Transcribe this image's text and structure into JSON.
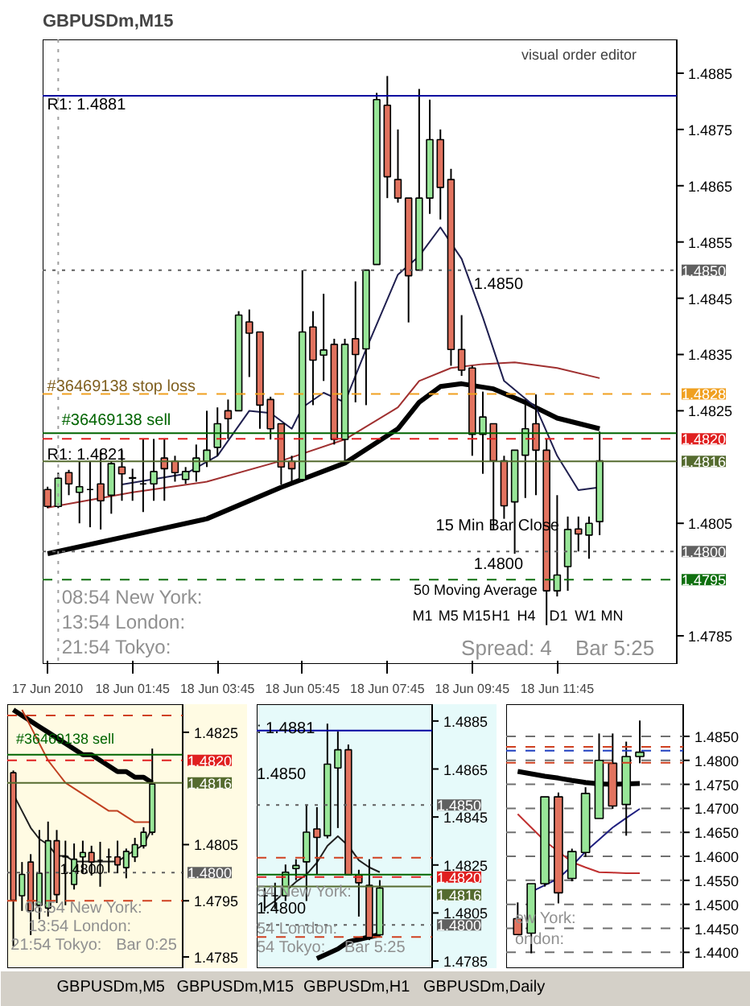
{
  "chart_data": [
    {
      "type": "candlestick",
      "title": "GBPUSDm,M15",
      "x": [
        "2010-06-17T23:45",
        "2010-06-18T00:00",
        "2010-06-18T00:15",
        "2010-06-18T00:30",
        "2010-06-18T00:45",
        "2010-06-18T01:00",
        "2010-06-18T01:15",
        "2010-06-18T01:30",
        "2010-06-18T01:45",
        "2010-06-18T02:00",
        "2010-06-18T02:15",
        "2010-06-18T02:30",
        "2010-06-18T02:45",
        "2010-06-18T03:00",
        "2010-06-18T03:15",
        "2010-06-18T03:30",
        "2010-06-18T03:45",
        "2010-06-18T04:00",
        "2010-06-18T04:15",
        "2010-06-18T04:30",
        "2010-06-18T04:45",
        "2010-06-18T05:00",
        "2010-06-18T05:15",
        "2010-06-18T05:30",
        "2010-06-18T05:45",
        "2010-06-18T06:00",
        "2010-06-18T06:15",
        "2010-06-18T06:30",
        "2010-06-18T06:45",
        "2010-06-18T07:00",
        "2010-06-18T07:15",
        "2010-06-18T07:30",
        "2010-06-18T07:45",
        "2010-06-18T08:00",
        "2010-06-18T08:15",
        "2010-06-18T08:30",
        "2010-06-18T08:45",
        "2010-06-18T09:00",
        "2010-06-18T09:15",
        "2010-06-18T09:30",
        "2010-06-18T09:45",
        "2010-06-18T10:00",
        "2010-06-18T10:15",
        "2010-06-18T10:30",
        "2010-06-18T10:45",
        "2010-06-18T11:00",
        "2010-06-18T11:15",
        "2010-06-18T11:30",
        "2010-06-18T11:45",
        "2010-06-18T12:00",
        "2010-06-18T12:15",
        "2010-06-18T12:30",
        "2010-06-18T12:45"
      ],
      "ohlc": [
        [
          1.4811,
          1.48115,
          1.48077,
          1.4808
        ],
        [
          1.4808,
          1.4814,
          1.48077,
          1.4813
        ],
        [
          1.4814,
          1.48145,
          1.481,
          1.4812
        ],
        [
          1.48105,
          1.4816,
          1.4805,
          1.48115
        ],
        [
          1.4811,
          1.4816,
          1.48043,
          1.4811
        ],
        [
          1.4812,
          1.4818,
          1.48039,
          1.4809
        ],
        [
          1.481,
          1.4816,
          1.48067,
          1.48156
        ],
        [
          1.4815,
          1.4818,
          1.4809,
          1.48138
        ],
        [
          1.48131,
          1.48147,
          1.4809,
          1.4813
        ],
        [
          1.4812,
          1.482,
          1.4807,
          1.4812
        ],
        [
          1.4812,
          1.482,
          1.4809,
          1.48142
        ],
        [
          1.48166,
          1.482,
          1.4809,
          1.48147
        ],
        [
          1.4816,
          1.4817,
          1.48124,
          1.4814
        ],
        [
          1.48128,
          1.4815,
          1.4812,
          1.48142
        ],
        [
          1.48142,
          1.4819,
          1.48124,
          1.48166
        ],
        [
          1.4816,
          1.4825,
          1.4815,
          1.4818
        ],
        [
          1.48185,
          1.48256,
          1.4817,
          1.48227
        ],
        [
          1.4825,
          1.4827,
          1.482,
          1.48236
        ],
        [
          1.4825,
          1.48427,
          1.4825,
          1.4842
        ],
        [
          1.48408,
          1.4843,
          1.4831,
          1.48388
        ],
        [
          1.4839,
          1.4839,
          1.48218,
          1.4826
        ],
        [
          1.4827,
          1.48275,
          1.48199,
          1.48218
        ],
        [
          1.48227,
          1.48227,
          1.48119,
          1.4815
        ],
        [
          1.4816,
          1.4817,
          1.48124,
          1.48147
        ],
        [
          1.48128,
          1.485,
          1.48124,
          1.4839
        ],
        [
          1.48399,
          1.48427,
          1.4826,
          1.4834
        ],
        [
          1.48349,
          1.48458,
          1.48303,
          1.48358
        ],
        [
          1.48368,
          1.48378,
          1.4819,
          1.48199
        ],
        [
          1.48199,
          1.48378,
          1.48157,
          1.48368
        ],
        [
          1.48378,
          1.4848,
          1.48265,
          1.4835
        ],
        [
          1.4836,
          1.485,
          1.4826,
          1.485
        ],
        [
          1.4851,
          1.48815,
          1.4851,
          1.48803
        ],
        [
          1.48793,
          1.48845,
          1.48628,
          1.48666
        ],
        [
          1.48661,
          1.4875,
          1.4862,
          1.48628
        ],
        [
          1.48628,
          1.48628,
          1.48407,
          1.4849
        ],
        [
          1.485,
          1.48822,
          1.485,
          1.48628
        ],
        [
          1.48628,
          1.48803,
          1.486,
          1.48732
        ],
        [
          1.48732,
          1.4875,
          1.4859,
          1.48647
        ],
        [
          1.48661,
          1.4868,
          1.4833,
          1.48359
        ],
        [
          1.48359,
          1.4842,
          1.48312,
          1.48322
        ],
        [
          1.48326,
          1.4833,
          1.4817,
          1.48208
        ],
        [
          1.48208,
          1.48284,
          1.48138,
          1.48239
        ],
        [
          1.48227,
          1.48227,
          1.48039,
          1.48161
        ],
        [
          1.48161,
          1.4817,
          1.48058,
          1.48081
        ],
        [
          1.48088,
          1.4818,
          1.47996,
          1.4818
        ],
        [
          1.48171,
          1.4827,
          1.48095,
          1.48218
        ],
        [
          1.48227,
          1.48279,
          1.481,
          1.4818
        ],
        [
          1.4818,
          1.48199,
          1.47869,
          1.4793
        ],
        [
          1.4793,
          1.481,
          1.4792,
          1.47958
        ],
        [
          1.47973,
          1.48062,
          1.4793,
          1.48039
        ],
        [
          1.4804,
          1.48062,
          1.48,
          1.48031
        ],
        [
          1.48029,
          1.48062,
          1.47987,
          1.4805
        ],
        [
          1.48053,
          1.48213,
          1.48029,
          1.48161
        ]
      ],
      "series": [
        {
          "type": "line",
          "color": "#000000",
          "x": [
            "2010-06-17T23:45",
            "2010-06-18T01:45",
            "2010-06-18T03:30",
            "2010-06-18T05:15",
            "2010-06-18T06:45",
            "2010-06-18T08:00",
            "2010-06-18T08:30",
            "2010-06-18T09:00",
            "2010-06-18T09:30",
            "2010-06-18T10:15",
            "2010-06-18T11:00",
            "2010-06-18T11:45",
            "2010-06-18T12:45"
          ],
          "values": [
            1.47996,
            1.48029,
            1.48058,
            1.48114,
            1.48157,
            1.48218,
            1.48265,
            1.48293,
            1.48298,
            1.48289,
            1.48265,
            1.48237,
            1.48218
          ]
        },
        {
          "type": "line",
          "color": "#a03030",
          "x": [
            "2010-06-17T23:45",
            "2010-06-18T01:45",
            "2010-06-18T03:30",
            "2010-06-18T05:15",
            "2010-06-18T06:45",
            "2010-06-18T08:00",
            "2010-06-18T08:30",
            "2010-06-18T09:15",
            "2010-06-18T10:00",
            "2010-06-18T10:45",
            "2010-06-18T11:45",
            "2010-06-18T12:45"
          ],
          "values": [
            1.48078,
            1.48105,
            1.48124,
            1.48161,
            1.48199,
            1.48256,
            1.48303,
            1.48326,
            1.48333,
            1.48336,
            1.48326,
            1.48308
          ]
        },
        {
          "type": "line",
          "color": "#202050",
          "x": [
            "2010-06-18T01:30",
            "2010-06-18T03:00",
            "2010-06-18T03:45",
            "2010-06-18T04:30",
            "2010-06-18T05:00",
            "2010-06-18T05:30",
            "2010-06-18T05:45",
            "2010-06-18T06:15",
            "2010-06-18T06:45",
            "2010-06-18T07:15",
            "2010-06-18T08:00",
            "2010-06-18T08:30",
            "2010-06-18T09:00",
            "2010-06-18T09:30",
            "2010-06-18T10:00",
            "2010-06-18T10:30",
            "2010-06-18T11:15",
            "2010-06-18T11:45",
            "2010-06-18T12:15",
            "2010-06-18T12:45"
          ],
          "values": [
            1.48119,
            1.48138,
            1.4817,
            1.4825,
            1.48246,
            1.48218,
            1.48256,
            1.48282,
            1.48265,
            1.48359,
            1.48492,
            1.48525,
            1.48576,
            1.4852,
            1.48416,
            1.48303,
            1.48256,
            1.4817,
            1.48109,
            1.48114
          ]
        }
      ],
      "xlim": [
        "2010-06-17T23:38",
        "2010-06-18T14:34"
      ],
      "xticks": [
        {
          "value": "2010-06-17T23:45",
          "label": "17 Jun 2010"
        },
        {
          "value": "2010-06-18T01:45",
          "label": "18 Jun 01:45"
        },
        {
          "value": "2010-06-18T03:45",
          "label": "18 Jun 03:45"
        },
        {
          "value": "2010-06-18T05:45",
          "label": "18 Jun 05:45"
        },
        {
          "value": "2010-06-18T07:45",
          "label": "18 Jun 07:45"
        },
        {
          "value": "2010-06-18T09:45",
          "label": "18 Jun 09:45"
        },
        {
          "value": "2010-06-18T11:45",
          "label": "18 Jun 11:45"
        }
      ],
      "ylim": [
        1.478,
        1.4891
      ],
      "yticks": [
        1.4885,
        1.4875,
        1.4865,
        1.4855,
        1.4845,
        1.4835,
        1.4825,
        1.4805,
        1.4785
      ],
      "ref_lines": [
        {
          "axis": "x",
          "value": "2010-06-18T00:00",
          "color": "#a0a0a0",
          "line_style": "dotted"
        },
        {
          "axis": "y",
          "value": 1.4881,
          "color": "#0000a0",
          "line_style": "solid"
        },
        {
          "axis": "y",
          "value": 1.485,
          "label": "1.4850",
          "color": "#606060",
          "line_style": "dotted"
        },
        {
          "axis": "y",
          "value": 1.4828,
          "label": "1.4828",
          "color": "#f0a020",
          "line_style": "dashed"
        },
        {
          "axis": "y",
          "value": 1.4821,
          "color": "#006400",
          "line_style": "solid"
        },
        {
          "axis": "y",
          "value": 1.482,
          "label": "1.4820",
          "color": "#e02020",
          "line_style": "dashed"
        },
        {
          "axis": "y",
          "value": 1.4816,
          "label": "1.4816",
          "color": "#556b2f",
          "line_style": "solid"
        },
        {
          "axis": "y",
          "value": 1.48,
          "label": "1.4800",
          "color": "#606060",
          "line_style": "dotted"
        },
        {
          "axis": "y",
          "value": 1.4795,
          "label": "1.4795",
          "color": "#107010",
          "line_style": "dashed"
        }
      ],
      "annotations": [
        "R1: 1.4881",
        "#36469138 stop loss",
        "#36469138 sell",
        "R1: 1.4821",
        "1.4850",
        "1.4800",
        "visual order editor",
        "08:54 New York:",
        "13:54 London:",
        "21:54 Tokyo:",
        "15 Min Bar Close",
        "50 Moving Average",
        "M1",
        "M5",
        "M15",
        "H1",
        "H4",
        "D1",
        "W1",
        "MN",
        "Spread: 4",
        "Bar  5:25"
      ]
    },
    {
      "type": "candlestick",
      "categories": [
        null,
        null,
        null,
        null,
        null,
        null,
        null,
        null,
        null,
        null,
        null,
        null,
        null,
        null,
        null,
        null,
        null
      ],
      "ohlc": [
        [
          1.48178,
          1.48182,
          1.47869,
          1.47951
        ],
        [
          1.47959,
          1.48019,
          1.47932,
          1.47997
        ],
        [
          1.48019,
          1.48033,
          1.47889,
          1.47932
        ],
        [
          1.47942,
          1.48076,
          1.47917,
          1.47999
        ],
        [
          1.47937,
          1.48091,
          1.47922,
          1.48057
        ],
        [
          1.48057,
          1.48076,
          1.47946,
          1.47961
        ],
        [
          1.48028,
          1.48057,
          1.47942,
          1.48029
        ],
        [
          1.47979,
          1.48052,
          1.4797,
          1.48024
        ],
        [
          1.48028,
          1.48057,
          1.47999,
          1.48036
        ],
        [
          1.48036,
          1.48048,
          1.47995,
          1.48019
        ],
        [
          1.48022,
          1.48055,
          1.47975,
          1.48022
        ],
        [
          1.48028,
          1.48043,
          1.48,
          1.48028
        ],
        [
          1.48028,
          1.48057,
          1.47999,
          1.48014
        ],
        [
          1.48009,
          1.48043,
          1.4799,
          1.48038
        ],
        [
          1.48028,
          1.48062,
          1.48019,
          1.4805
        ],
        [
          1.48048,
          1.48081,
          1.48043,
          1.48072
        ],
        [
          1.48072,
          1.48221,
          1.48067,
          1.48158
        ]
      ],
      "series": [
        {
          "type": "line",
          "color": "#000000",
          "values": [
            1.4829,
            1.4828,
            1.4827,
            1.4826,
            1.4825,
            1.4824,
            1.4823,
            1.4822,
            1.4821,
            1.4821,
            1.482,
            1.4819,
            1.4818,
            1.4818,
            1.4817,
            1.4817,
            1.4816
          ]
        },
        {
          "type": "line",
          "color": "#c04020",
          "values": [
            null,
            1.4829,
            1.4826,
            1.4823,
            1.482,
            1.4818,
            1.4816,
            1.4815,
            1.4814,
            1.4813,
            1.4812,
            1.4811,
            1.4811,
            1.481,
            1.4809,
            1.4809,
            1.4809
          ]
        },
        {
          "type": "line",
          "color": "#202020",
          "values": [
            1.4814,
            1.4811,
            1.4808,
            1.4806,
            1.4805,
            1.4803,
            1.4803,
            1.4802,
            1.4802,
            1.4802,
            1.4802,
            1.4802,
            1.4802,
            1.4803,
            1.4804,
            1.4805,
            1.4808
          ]
        }
      ],
      "ylim": [
        1.4783,
        1.483
      ],
      "yticks": [
        1.4825,
        1.4805,
        1.4795,
        1.4785
      ],
      "tick_labels": "y",
      "ref_lines": [
        {
          "axis": "y",
          "value": 1.4828,
          "color": "#d04020",
          "line_style": "dashed"
        },
        {
          "axis": "y",
          "value": 1.4821,
          "color": "#006400",
          "line_style": "solid"
        },
        {
          "axis": "y",
          "value": 1.482,
          "label": "1.4820",
          "color": "#e02020",
          "line_style": "dashed"
        },
        {
          "axis": "y",
          "value": 1.4816,
          "label": "1.4816",
          "color": "#556b2f",
          "line_style": "solid"
        },
        {
          "axis": "y",
          "value": 1.48,
          "label": "1.4800",
          "color": "#606060",
          "line_style": "dotted"
        },
        {
          "axis": "y",
          "value": 1.4795,
          "color": "#d04020",
          "line_style": "dashed"
        }
      ],
      "annotations": [
        "#36469138 sell",
        "1.4800",
        "08:54 New York:",
        "13:54 London:",
        "21:54 Tokyo:",
        "Bar 0:25"
      ]
    },
    {
      "type": "candlestick",
      "categories": [
        null,
        null,
        null,
        null,
        null,
        null,
        null,
        null,
        null,
        null,
        null,
        null
      ],
      "ohlc": [
        [
          1.48122,
          1.48154,
          1.48057,
          1.48122
        ],
        [
          1.48122,
          1.48176,
          1.48067,
          1.48122
        ],
        [
          1.48122,
          1.48252,
          1.481,
          1.4822
        ],
        [
          1.48235,
          1.48274,
          1.48187,
          1.48248
        ],
        [
          1.48263,
          1.48502,
          1.481,
          1.48387
        ],
        [
          1.484,
          1.48491,
          1.48209,
          1.48365
        ],
        [
          1.48372,
          1.48839,
          1.48361,
          1.4867
        ],
        [
          1.48654,
          1.48807,
          1.48404,
          1.4873
        ],
        [
          1.4873,
          1.48752,
          1.48209,
          1.48209
        ],
        [
          1.48209,
          1.4823,
          1.48035,
          1.48176
        ],
        [
          1.48165,
          1.48274,
          1.47937,
          1.47948
        ],
        [
          1.47959,
          1.48187,
          1.47948,
          1.48154
        ]
      ],
      "series": [
        {
          "type": "line",
          "color": "#000000",
          "values": [
            null,
            null,
            null,
            null,
            null,
            1.4786,
            1.4788,
            1.479,
            1.4793,
            1.4794,
            1.4795,
            1.4796
          ]
        },
        {
          "type": "line",
          "color": "#202020",
          "values": [
            1.4807,
            1.481,
            1.4814,
            1.4818,
            1.4821,
            1.4826,
            1.4833,
            1.4837,
            1.4833,
            1.4827,
            1.4824,
            1.4822
          ]
        }
      ],
      "ylim": [
        1.4782,
        1.4892
      ],
      "yticks": [
        1.4885,
        1.4865,
        1.4845,
        1.4825,
        1.4805,
        1.4785
      ],
      "tick_labels": "y",
      "ref_lines": [
        {
          "axis": "y",
          "value": 1.4881,
          "color": "#0000a0",
          "line_style": "solid"
        },
        {
          "axis": "y",
          "value": 1.485,
          "label": "1.4850",
          "color": "#606060",
          "line_style": "dotted"
        },
        {
          "axis": "y",
          "value": 1.4828,
          "color": "#d04020",
          "line_style": "dashed"
        },
        {
          "axis": "y",
          "value": 1.4821,
          "color": "#006400",
          "line_style": "solid"
        },
        {
          "axis": "y",
          "value": 1.482,
          "label": "1.4820",
          "color": "#e02020",
          "line_style": "dashed"
        },
        {
          "axis": "y",
          "value": 1.4816,
          "label": "1.4816",
          "color": "#556b2f",
          "line_style": "solid"
        },
        {
          "axis": "y",
          "value": 1.48,
          "label": "1.4800",
          "color": "#606060",
          "line_style": "dotted"
        },
        {
          "axis": "y",
          "value": 1.4795,
          "color": "#d04020",
          "line_style": "dashed"
        }
      ],
      "annotations": [
        ": 1.4881",
        "1.4850",
        "54 New York:",
        "1.4800",
        "54 London:",
        "54 Tokyo:",
        "Bar  5:25"
      ]
    },
    {
      "type": "candlestick",
      "categories": [
        null,
        null,
        null,
        null,
        null,
        null,
        null,
        null,
        null,
        null
      ],
      "ohlc": [
        [
          1.447,
          1.4504,
          1.4437,
          1.4437
        ],
        [
          1.444,
          1.4543,
          1.4398,
          1.4543
        ],
        [
          1.4543,
          1.4724,
          1.4537,
          1.4724
        ],
        [
          1.4724,
          1.4733,
          1.4502,
          1.4524
        ],
        [
          1.4554,
          1.4616,
          1.4548,
          1.461
        ],
        [
          1.4608,
          1.4744,
          1.4599,
          1.4731
        ],
        [
          1.4679,
          1.4856,
          1.4679,
          1.48
        ],
        [
          1.4794,
          1.4856,
          1.4699,
          1.4705
        ],
        [
          1.4708,
          1.4839,
          1.4643,
          1.4808
        ],
        [
          1.4808,
          1.4883,
          1.4794,
          1.4817
        ]
      ],
      "series": [
        {
          "type": "line",
          "color": "#000000",
          "values": [
            1.4777,
            1.4772,
            1.4767,
            1.4763,
            1.4758,
            1.4754,
            1.4751,
            1.475,
            1.4751,
            1.4752
          ]
        },
        {
          "type": "line",
          "color": "#c03030",
          "values": [
            1.4688,
            1.466,
            1.4632,
            1.461,
            1.4588,
            1.4577,
            1.4567,
            1.4566,
            1.4565,
            1.4565
          ]
        },
        {
          "type": "line",
          "color": "#202080",
          "values": [
            null,
            1.4526,
            1.454,
            1.4554,
            1.458,
            1.461,
            1.4635,
            1.466,
            1.468,
            1.4699
          ]
        }
      ],
      "ylim": [
        1.4367,
        1.4917
      ],
      "yticks": [
        {
          "value": 1.485,
          "label": "1.4850"
        },
        {
          "value": 1.48,
          "label": "1.4800"
        },
        {
          "value": 1.475,
          "label": "1.4750"
        },
        {
          "value": 1.47,
          "label": "1.4700"
        },
        {
          "value": 1.465,
          "label": "1.4650"
        },
        {
          "value": 1.46,
          "label": "1.4600"
        },
        {
          "value": 1.455,
          "label": "1.4550"
        },
        {
          "value": 1.45,
          "label": "1.4500"
        },
        {
          "value": 1.445,
          "label": "1.4450"
        },
        {
          "value": 1.44,
          "label": "1.4400"
        }
      ],
      "tick_labels": "y",
      "grid": "y",
      "ref_lines": [
        {
          "axis": "y",
          "value": 1.4828,
          "color": "#d04020",
          "line_style": "dashed"
        },
        {
          "axis": "y",
          "value": 1.482,
          "color": "#2040c0",
          "line_style": "dashed"
        },
        {
          "axis": "y",
          "value": 1.4795,
          "color": "#d04020",
          "line_style": "dashed"
        }
      ],
      "annotations": [
        "ew York:",
        "ondon:"
      ]
    },
    {
      "type": "other",
      "annotations": [
        "GBPUSDm,M5",
        "GBPUSDm,M15",
        "GBPUSDm,H1",
        "GBPUSDm,Daily"
      ]
    }
  ]
}
